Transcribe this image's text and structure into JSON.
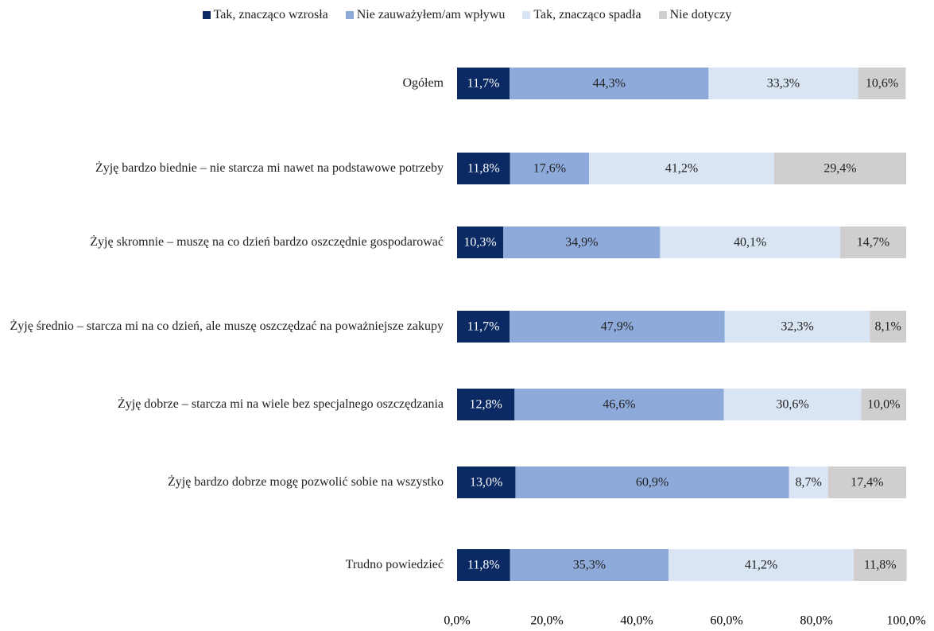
{
  "chart_data": {
    "type": "stacked-bar-horizontal",
    "categories": [
      "Ogółem",
      "Żyję bardzo biednie – nie starcza mi nawet na podstawowe potrzeby",
      "Żyję skromnie – muszę na co dzień bardzo oszczędnie gospodarować",
      "Żyję średnio – starcza mi na co dzień, ale muszę oszczędzać na poważniejsze zakupy",
      "Żyję dobrze – starcza mi na wiele bez specjalnego oszczędzania",
      "Żyję bardzo dobrze mogę pozwolić sobie na wszystko",
      "Trudno powiedzieć"
    ],
    "series": [
      {
        "name": "Tak, znacząco wzrosła",
        "color": "#0b2a63",
        "values": [
          11.7,
          11.8,
          10.3,
          11.7,
          12.8,
          13.0,
          11.8
        ],
        "value_labels": [
          "11,7%",
          "11,8%",
          "10,3%",
          "11,7%",
          "12,8%",
          "13,0%",
          "11,8%"
        ]
      },
      {
        "name": "Nie zauważyłem/am wpływu",
        "color": "#8eaadb",
        "values": [
          44.3,
          17.6,
          34.9,
          47.9,
          46.6,
          60.9,
          35.3
        ],
        "value_labels": [
          "44,3%",
          "17,6%",
          "34,9%",
          "47,9%",
          "46,6%",
          "60,9%",
          "35,3%"
        ]
      },
      {
        "name": "Tak, znacząco spadła",
        "color": "#dae5f3",
        "values": [
          33.3,
          41.2,
          40.1,
          32.3,
          30.6,
          8.7,
          41.2
        ],
        "value_labels": [
          "33,3%",
          "41,2%",
          "40,1%",
          "32,3%",
          "30,6%",
          "8,7%",
          "41,2%"
        ]
      },
      {
        "name": "Nie dotyczy",
        "color": "#d0cece",
        "values": [
          10.6,
          29.4,
          14.7,
          8.1,
          10.0,
          17.4,
          11.8
        ],
        "value_labels": [
          "10,6%",
          "29,4%",
          "14,7%",
          "8,1%",
          "10,0%",
          "17,4%",
          "11,8%"
        ]
      }
    ],
    "xlim": [
      0,
      100
    ],
    "xticks": [
      {
        "value": 0,
        "label": "0,0%"
      },
      {
        "value": 20,
        "label": "20,0%"
      },
      {
        "value": 40,
        "label": "40,0%"
      },
      {
        "value": 60,
        "label": "60,0%"
      },
      {
        "value": 80,
        "label": "80,0%"
      },
      {
        "value": 100,
        "label": "100,0%"
      }
    ],
    "legend": "top"
  }
}
